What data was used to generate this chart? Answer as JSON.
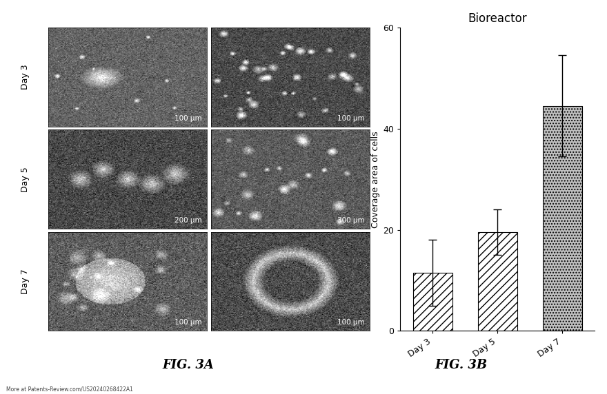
{
  "title_3b": "Bioreactor",
  "ylabel_3b": "Coverage area of cells",
  "categories": [
    "Day 3",
    "Day 5",
    "Day 7"
  ],
  "values": [
    11.5,
    19.5,
    44.5
  ],
  "errors": [
    6.5,
    4.5,
    10.0
  ],
  "ylim": [
    0,
    60
  ],
  "yticks": [
    0,
    20,
    40,
    60
  ],
  "fig3a_label": "FIG. 3A",
  "fig3b_label": "FIG. 3B",
  "watermark": "More at Patents-Review.com/US20240268422A1",
  "scale_labels_left": [
    "100 μm",
    "200 μm",
    "100 μm"
  ],
  "scale_labels_right": [
    "100 μm",
    "300 μm",
    "100 μm"
  ],
  "day_labels": [
    "Day 3",
    "Day 5",
    "Day 7"
  ],
  "bar_hatches": [
    "///",
    "///",
    "...."
  ],
  "bar_facecolor": "#d8d8d8"
}
